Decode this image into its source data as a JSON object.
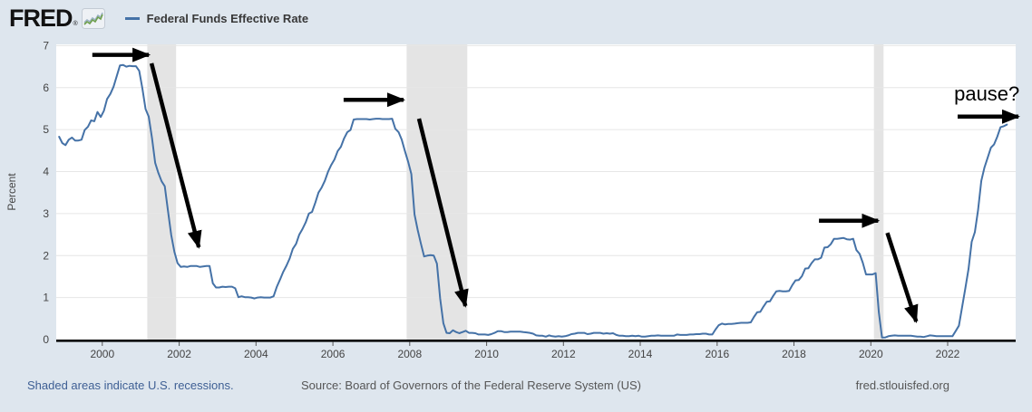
{
  "header": {
    "logo": "FRED",
    "logo_reg": "®",
    "legend": {
      "label": "Federal Funds Effective Rate",
      "color": "#4572a7"
    }
  },
  "chart_data": {
    "type": "line",
    "title": "",
    "ylabel": "Percent",
    "x_ticks": [
      2000,
      2002,
      2004,
      2006,
      2008,
      2010,
      2012,
      2014,
      2016,
      2018,
      2020,
      2022
    ],
    "y_ticks": [
      0,
      1,
      2,
      3,
      4,
      5,
      6,
      7
    ],
    "x_domain": [
      1998.8,
      2023.77
    ],
    "y_domain": [
      0,
      7.03
    ],
    "grid": true,
    "legend_position": "top-left",
    "recessions": [
      [
        2001.17,
        2001.92
      ],
      [
        2007.92,
        2009.5
      ],
      [
        2020.08,
        2020.33
      ]
    ],
    "series": [
      {
        "name": "Federal Funds Effective Rate",
        "color": "#4572a7",
        "frequency": "monthly",
        "start_year": 1998,
        "start_month": 11,
        "values": [
          4.83,
          4.68,
          4.63,
          4.76,
          4.81,
          4.74,
          4.74,
          4.76,
          4.99,
          5.07,
          5.22,
          5.2,
          5.42,
          5.3,
          5.45,
          5.73,
          5.85,
          6.02,
          6.27,
          6.53,
          6.54,
          6.5,
          6.52,
          6.51,
          6.51,
          6.4,
          5.98,
          5.49,
          5.31,
          4.8,
          4.21,
          3.97,
          3.77,
          3.65,
          3.07,
          2.49,
          2.09,
          1.82,
          1.73,
          1.74,
          1.73,
          1.75,
          1.75,
          1.75,
          1.73,
          1.74,
          1.75,
          1.75,
          1.34,
          1.24,
          1.24,
          1.26,
          1.25,
          1.26,
          1.26,
          1.22,
          1.01,
          1.03,
          1.01,
          1.01,
          1.0,
          0.98,
          1.0,
          1.01,
          1.0,
          1.0,
          1.0,
          1.03,
          1.26,
          1.43,
          1.61,
          1.76,
          1.93,
          2.16,
          2.28,
          2.5,
          2.63,
          2.79,
          3.0,
          3.04,
          3.26,
          3.5,
          3.62,
          3.78,
          4.0,
          4.16,
          4.29,
          4.49,
          4.59,
          4.79,
          4.94,
          4.99,
          5.24,
          5.25,
          5.25,
          5.25,
          5.25,
          5.24,
          5.25,
          5.26,
          5.26,
          5.25,
          5.25,
          5.25,
          5.26,
          5.02,
          4.94,
          4.76,
          4.49,
          4.24,
          3.94,
          2.98,
          2.61,
          2.28,
          1.98,
          2.0,
          2.01,
          2.0,
          1.81,
          0.97,
          0.39,
          0.16,
          0.15,
          0.22,
          0.18,
          0.15,
          0.18,
          0.21,
          0.16,
          0.16,
          0.15,
          0.12,
          0.12,
          0.12,
          0.11,
          0.13,
          0.16,
          0.2,
          0.2,
          0.18,
          0.18,
          0.19,
          0.19,
          0.19,
          0.19,
          0.18,
          0.17,
          0.16,
          0.14,
          0.1,
          0.09,
          0.09,
          0.07,
          0.1,
          0.08,
          0.07,
          0.08,
          0.07,
          0.08,
          0.1,
          0.13,
          0.14,
          0.16,
          0.16,
          0.16,
          0.13,
          0.14,
          0.16,
          0.16,
          0.16,
          0.14,
          0.15,
          0.14,
          0.15,
          0.11,
          0.09,
          0.09,
          0.08,
          0.08,
          0.09,
          0.08,
          0.09,
          0.07,
          0.07,
          0.08,
          0.09,
          0.09,
          0.1,
          0.09,
          0.09,
          0.09,
          0.09,
          0.09,
          0.12,
          0.11,
          0.11,
          0.11,
          0.12,
          0.12,
          0.13,
          0.13,
          0.14,
          0.14,
          0.12,
          0.12,
          0.24,
          0.34,
          0.38,
          0.36,
          0.37,
          0.37,
          0.38,
          0.39,
          0.4,
          0.4,
          0.4,
          0.41,
          0.54,
          0.65,
          0.66,
          0.79,
          0.9,
          0.91,
          1.04,
          1.15,
          1.16,
          1.15,
          1.15,
          1.16,
          1.3,
          1.41,
          1.42,
          1.51,
          1.69,
          1.7,
          1.82,
          1.91,
          1.91,
          1.95,
          2.19,
          2.2,
          2.27,
          2.4,
          2.4,
          2.41,
          2.42,
          2.39,
          2.38,
          2.4,
          2.13,
          2.04,
          1.83,
          1.55,
          1.55,
          1.55,
          1.58,
          0.65,
          0.05,
          0.05,
          0.08,
          0.09,
          0.1,
          0.09,
          0.09,
          0.09,
          0.09,
          0.09,
          0.08,
          0.07,
          0.07,
          0.06,
          0.08,
          0.1,
          0.09,
          0.08,
          0.08,
          0.08,
          0.08,
          0.08,
          0.08,
          0.2,
          0.33,
          0.77,
          1.21,
          1.68,
          2.33,
          2.56,
          3.08,
          3.78,
          4.1,
          4.33,
          4.57,
          4.65,
          4.83,
          5.06,
          5.08,
          5.12
        ]
      }
    ],
    "annotations": {
      "pause_label": {
        "text": "pause?",
        "x": 2023.02,
        "y": 5.87
      },
      "arrows": [
        {
          "x1": 1999.74,
          "y1": 6.78,
          "x2": 2001.21,
          "y2": 6.78
        },
        {
          "x1": 2001.28,
          "y1": 6.58,
          "x2": 2002.51,
          "y2": 2.2
        },
        {
          "x1": 2006.28,
          "y1": 5.71,
          "x2": 2007.84,
          "y2": 5.71
        },
        {
          "x1": 2008.24,
          "y1": 5.26,
          "x2": 2009.45,
          "y2": 0.8
        },
        {
          "x1": 2018.65,
          "y1": 2.83,
          "x2": 2020.19,
          "y2": 2.83
        },
        {
          "x1": 2020.43,
          "y1": 2.54,
          "x2": 2021.18,
          "y2": 0.43
        },
        {
          "x1": 2022.26,
          "y1": 5.31,
          "x2": 2023.84,
          "y2": 5.31
        }
      ]
    },
    "colors": {
      "background": "#dee6ee",
      "plot_background": "#ffffff",
      "grid": "#e6e6e6",
      "recession_band": "#e4e4e4",
      "axis": "#000000",
      "tick_label": "#444444",
      "annotation": "#000000"
    }
  },
  "footer": {
    "note": "Shaded areas indicate U.S. recessions.",
    "source": "Source: Board of Governors of the Federal Reserve System (US)",
    "site": "fred.stlouisfed.org"
  }
}
